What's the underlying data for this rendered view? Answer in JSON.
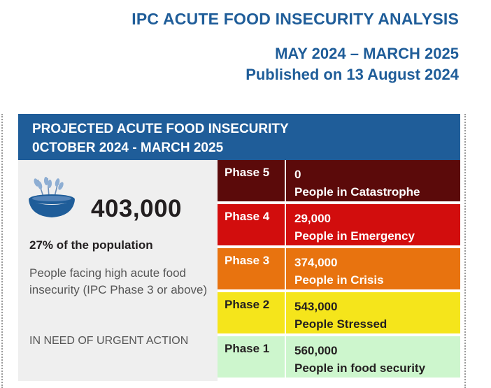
{
  "header": {
    "title": "IPC ACUTE FOOD INSECURITY ANALYSIS",
    "period": "MAY 2024 – MARCH 2025",
    "published": "Published on 13 August 2024"
  },
  "panel": {
    "title_line1": "PROJECTED ACUTE FOOD INSECURITY",
    "title_line2": "0CTOBER 2024 - MARCH 2025"
  },
  "summary": {
    "total": "403,000",
    "percent": "27% of the population",
    "description": "People facing high acute food insecurity (IPC Phase 3 or above)",
    "action": "IN NEED OF URGENT ACTION"
  },
  "phases": [
    {
      "label": "Phase 5",
      "value": "0",
      "desc": "People in Catastrophe",
      "color": "#5b0a0a",
      "text_color": "#ffffff"
    },
    {
      "label": "Phase 4",
      "value": "29,000",
      "desc": "People in Emergency",
      "color": "#d20d0d",
      "text_color": "#ffffff"
    },
    {
      "label": "Phase 3",
      "value": "374,000",
      "desc": "People in Crisis",
      "color": "#e8730f",
      "text_color": "#ffffff"
    },
    {
      "label": "Phase 2",
      "value": "543,000",
      "desc": "People Stressed",
      "color": "#f5e51b",
      "text_color": "#231f20"
    },
    {
      "label": "Phase 1",
      "value": "560,000",
      "desc": "People in food security",
      "color": "#cdf6cd",
      "text_color": "#231f20"
    }
  ],
  "icons": {
    "bowl": "grain-bowl-icon"
  }
}
